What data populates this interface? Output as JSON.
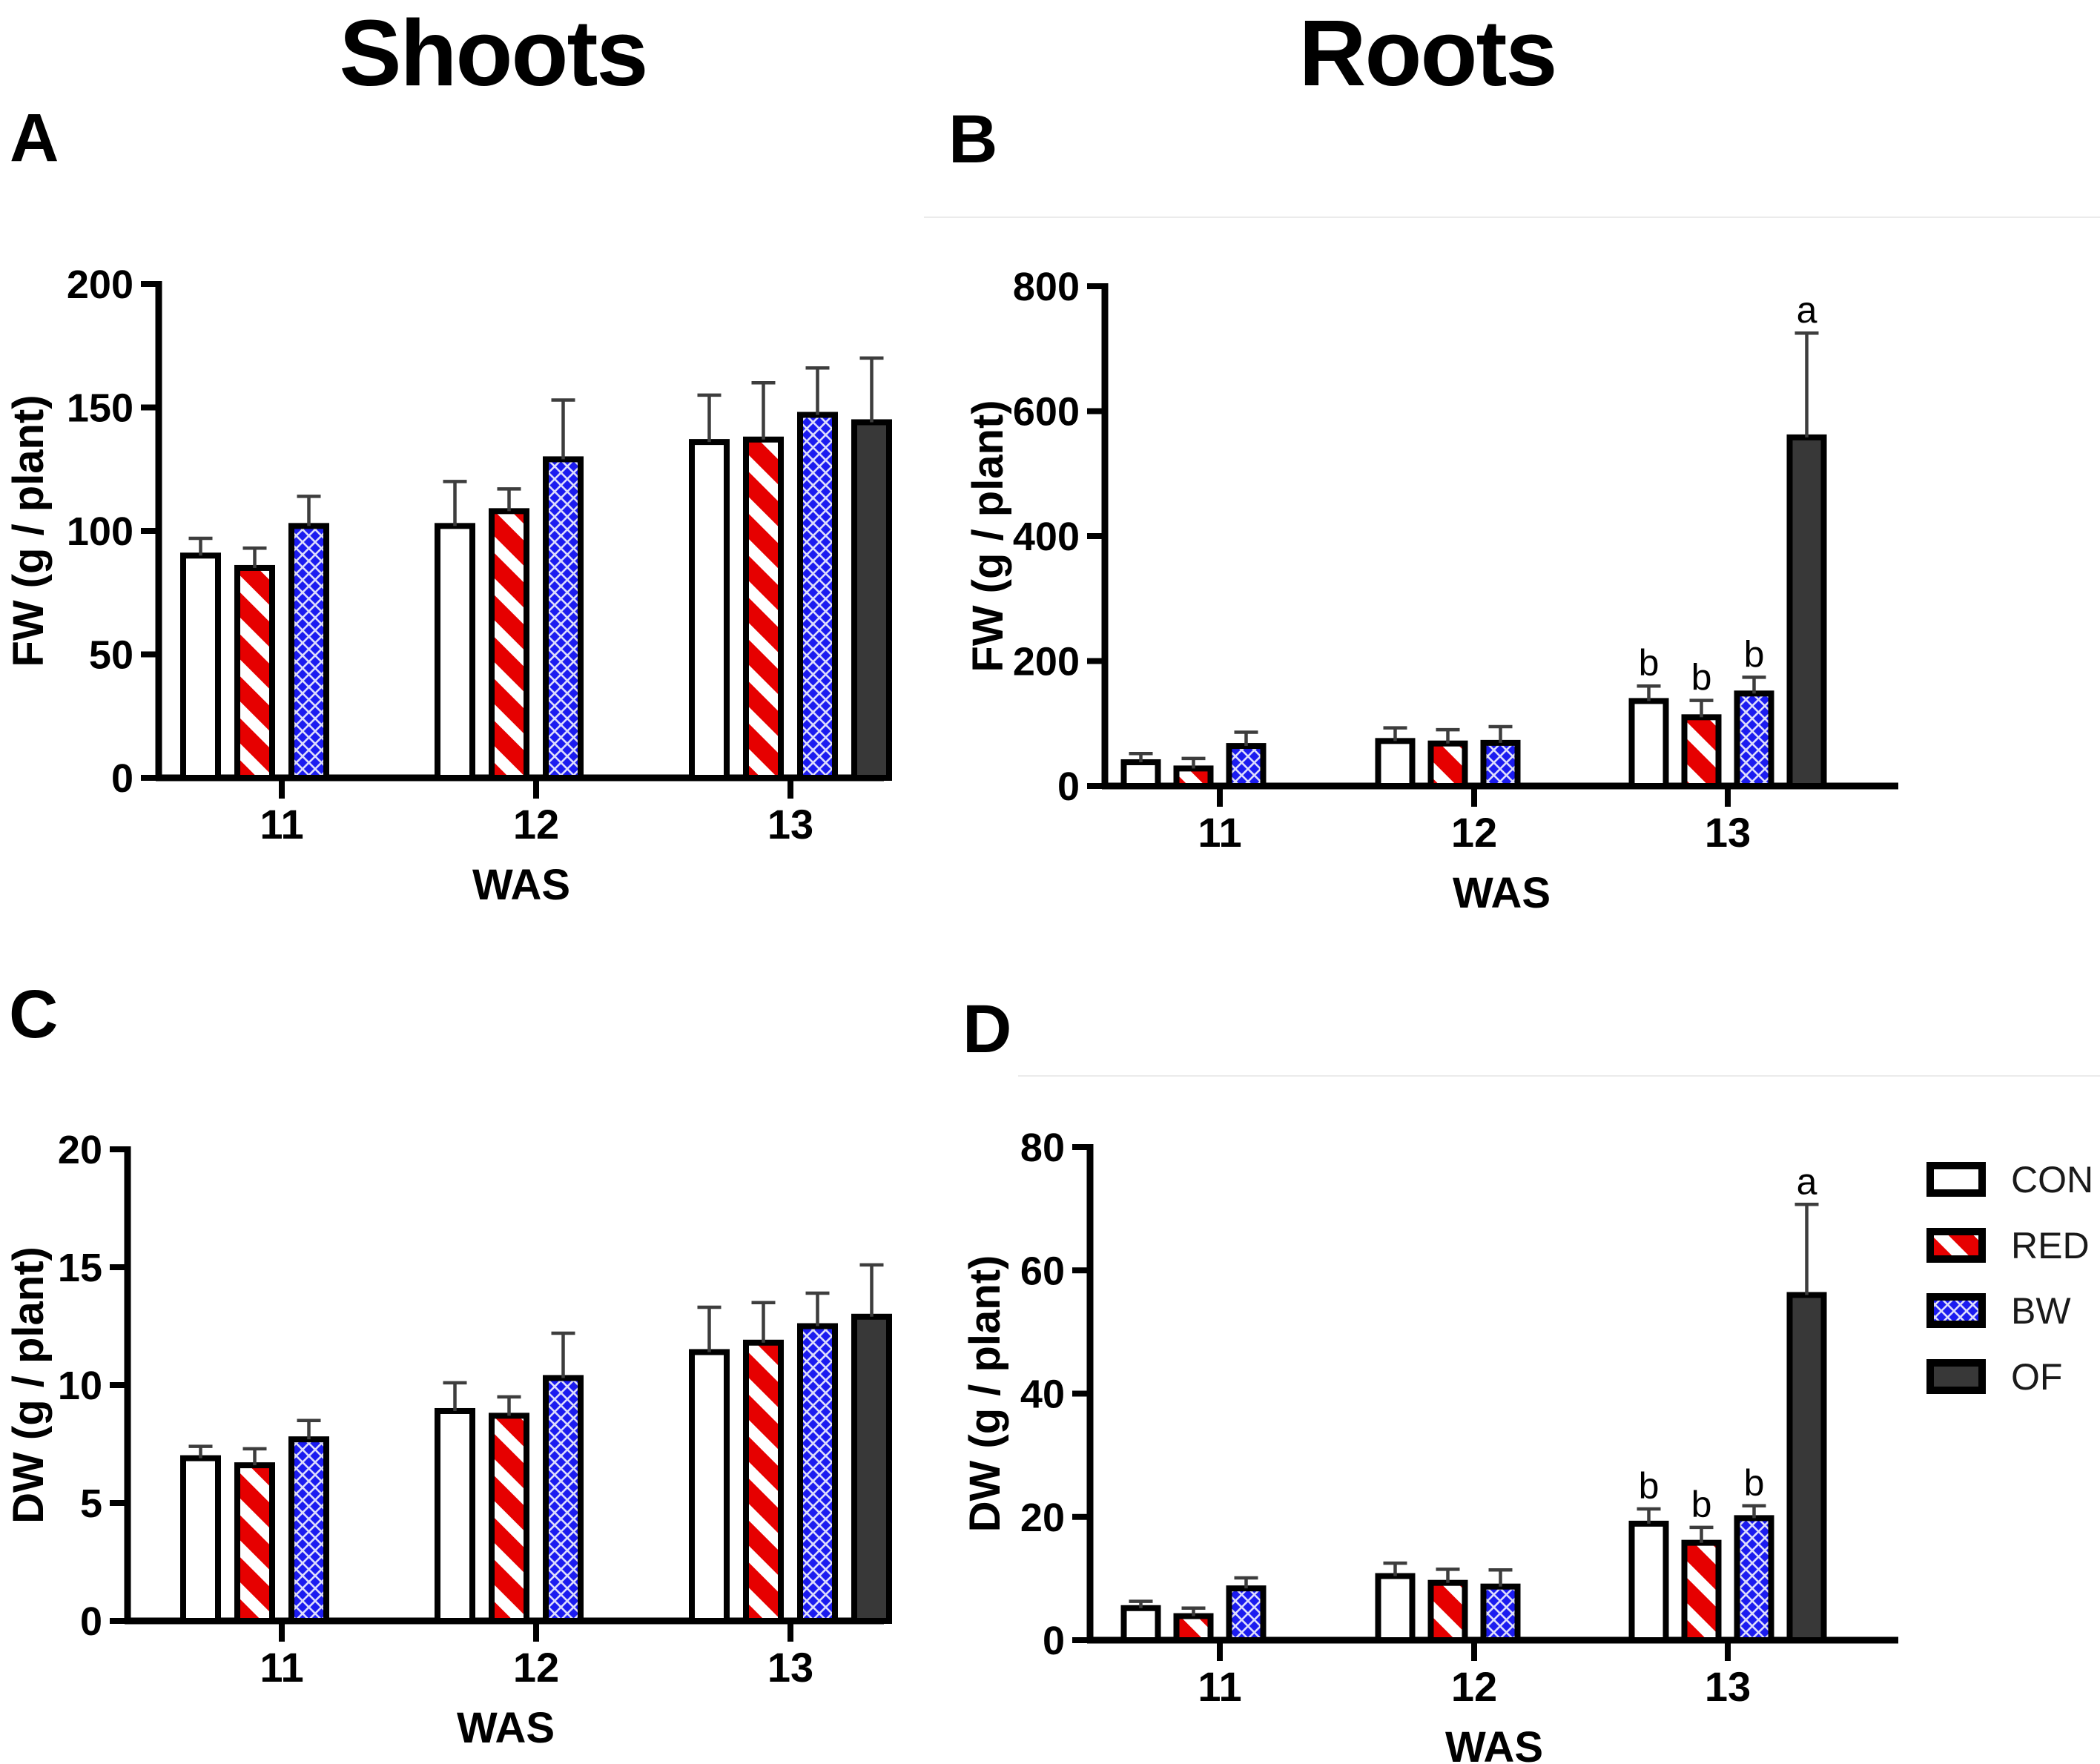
{
  "figure": {
    "column_titles": [
      {
        "text": "Shoots"
      },
      {
        "text": "Roots"
      }
    ]
  },
  "legend": {
    "items": [
      {
        "label": "CON",
        "swatch": "white-solid"
      },
      {
        "label": "RED",
        "swatch": "red-diagonal-stripes"
      },
      {
        "label": "BW",
        "swatch": "blue-diagonal-crosshatch"
      },
      {
        "label": "OF",
        "swatch": "dark-gray-solid"
      }
    ]
  },
  "colors": {
    "red": "#e60000",
    "blue": "#1c1cf0",
    "dark_gray": "#383838",
    "axis": "#000000",
    "error_bar": "#3d3d3d",
    "seam_line": "#ebebeb"
  },
  "chart_data": [
    {
      "panel": "A",
      "column": "Shoots",
      "type": "bar",
      "xlabel": "WAS",
      "ylabel": "FW (g / plant)",
      "ylim": [
        0,
        200
      ],
      "yticks": [
        0,
        50,
        100,
        150,
        200
      ],
      "categories": [
        "11",
        "12",
        "13"
      ],
      "series": [
        {
          "name": "CON",
          "values": [
            90,
            102,
            136
          ],
          "errors_plus": [
            7,
            18,
            19
          ],
          "sig_letters": [
            null,
            null,
            null
          ]
        },
        {
          "name": "RED",
          "values": [
            85,
            108,
            137
          ],
          "errors_plus": [
            8,
            9,
            23
          ],
          "sig_letters": [
            null,
            null,
            null
          ]
        },
        {
          "name": "BW",
          "values": [
            102,
            129,
            147
          ],
          "errors_plus": [
            12,
            24,
            19
          ],
          "sig_letters": [
            null,
            null,
            null
          ]
        },
        {
          "name": "OF",
          "values": [
            null,
            null,
            144
          ],
          "errors_plus": [
            null,
            null,
            26
          ],
          "sig_letters": [
            null,
            null,
            null
          ]
        }
      ]
    },
    {
      "panel": "B",
      "column": "Roots",
      "type": "bar",
      "xlabel": "WAS",
      "ylabel": "FW (g / plant)",
      "ylim": [
        0,
        800
      ],
      "yticks": [
        0,
        200,
        400,
        600,
        800
      ],
      "categories": [
        "11",
        "12",
        "13"
      ],
      "series": [
        {
          "name": "CON",
          "values": [
            38,
            72,
            136
          ],
          "errors_plus": [
            14,
            21,
            24
          ],
          "sig_letters": [
            null,
            null,
            "b"
          ]
        },
        {
          "name": "RED",
          "values": [
            28,
            68,
            110
          ],
          "errors_plus": [
            16,
            22,
            27
          ],
          "sig_letters": [
            null,
            null,
            "b"
          ]
        },
        {
          "name": "BW",
          "values": [
            64,
            69,
            148
          ],
          "errors_plus": [
            22,
            26,
            26
          ],
          "sig_letters": [
            null,
            null,
            "b"
          ]
        },
        {
          "name": "OF",
          "values": [
            null,
            null,
            558
          ],
          "errors_plus": [
            null,
            null,
            167
          ],
          "sig_letters": [
            null,
            null,
            "a"
          ]
        }
      ]
    },
    {
      "panel": "C",
      "column": "Shoots",
      "type": "bar",
      "xlabel": "WAS",
      "ylabel": "DW (g / plant)",
      "ylim": [
        0,
        20
      ],
      "yticks": [
        0,
        5,
        10,
        15,
        20
      ],
      "categories": [
        "11",
        "12",
        "13"
      ],
      "series": [
        {
          "name": "CON",
          "values": [
            6.9,
            8.9,
            11.4
          ],
          "errors_plus": [
            0.5,
            1.2,
            1.9
          ],
          "sig_letters": [
            null,
            null,
            null
          ]
        },
        {
          "name": "RED",
          "values": [
            6.6,
            8.7,
            11.8
          ],
          "errors_plus": [
            0.7,
            0.8,
            1.7
          ],
          "sig_letters": [
            null,
            null,
            null
          ]
        },
        {
          "name": "BW",
          "values": [
            7.7,
            10.3,
            12.5
          ],
          "errors_plus": [
            0.8,
            1.9,
            1.4
          ],
          "sig_letters": [
            null,
            null,
            null
          ]
        },
        {
          "name": "OF",
          "values": [
            null,
            null,
            12.9
          ],
          "errors_plus": [
            null,
            null,
            2.2
          ],
          "sig_letters": [
            null,
            null,
            null
          ]
        }
      ]
    },
    {
      "panel": "D",
      "column": "Roots",
      "type": "bar",
      "xlabel": "WAS",
      "ylabel": "DW (g / plant)",
      "ylim": [
        0,
        80
      ],
      "yticks": [
        0,
        20,
        40,
        60,
        80
      ],
      "categories": [
        "11",
        "12",
        "13"
      ],
      "series": [
        {
          "name": "CON",
          "values": [
            5.2,
            10.4,
            18.9
          ],
          "errors_plus": [
            1.1,
            2.1,
            2.4
          ],
          "sig_letters": [
            null,
            null,
            "b"
          ]
        },
        {
          "name": "RED",
          "values": [
            3.9,
            9.3,
            15.8
          ],
          "errors_plus": [
            1.3,
            2.2,
            2.5
          ],
          "sig_letters": [
            null,
            null,
            "b"
          ]
        },
        {
          "name": "BW",
          "values": [
            8.4,
            8.7,
            19.8
          ],
          "errors_plus": [
            1.7,
            2.7,
            2.0
          ],
          "sig_letters": [
            null,
            null,
            "b"
          ]
        },
        {
          "name": "OF",
          "values": [
            null,
            null,
            56
          ],
          "errors_plus": [
            null,
            null,
            14.7
          ],
          "sig_letters": [
            null,
            null,
            "a"
          ]
        }
      ]
    }
  ]
}
